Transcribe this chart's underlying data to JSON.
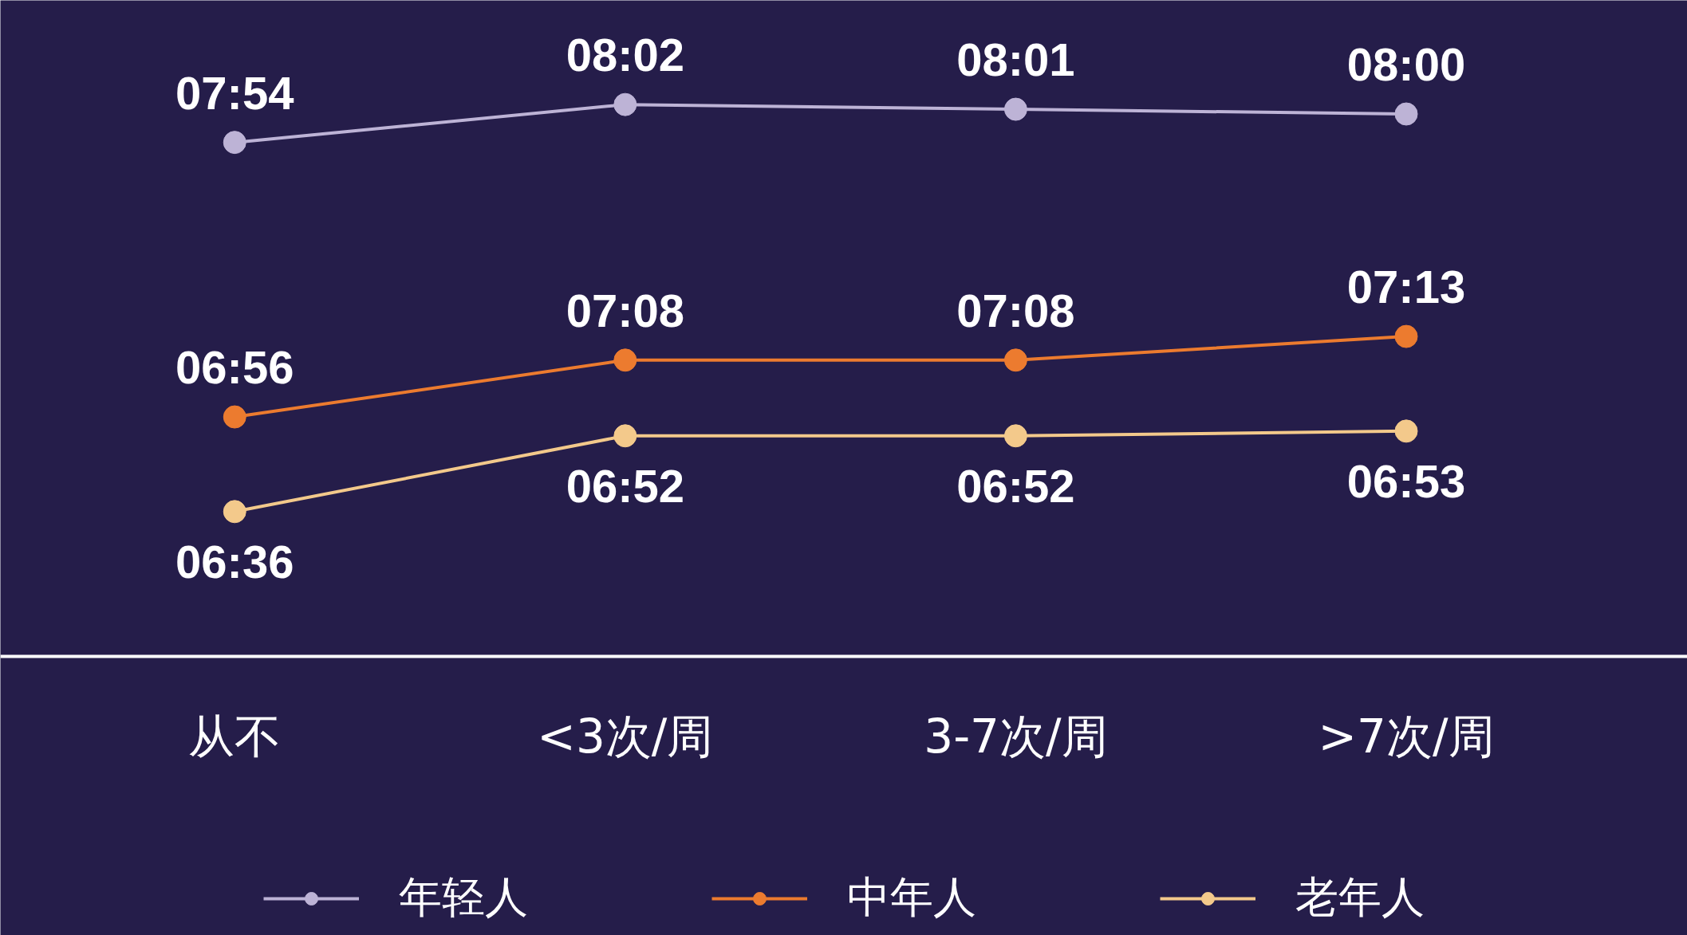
{
  "chart_data": {
    "type": "line",
    "categories": [
      "从不",
      "<3次/周",
      "3-7次/周",
      ">7次/周"
    ],
    "ylim": [
      6.09,
      8.4
    ],
    "marker": "circle",
    "legend": "bottom",
    "grid": false,
    "tick_labels": "x",
    "series": [
      {
        "name": "年轻人",
        "color": "#bdb3d6",
        "values": [
          7.9,
          8.0333,
          8.0167,
          8.0
        ],
        "value_labels": [
          "07:54",
          "08:02",
          "08:01",
          "08:00"
        ]
      },
      {
        "name": "中年人",
        "color": "#ec7b2f",
        "values": [
          6.9333,
          7.1333,
          7.1333,
          7.2167
        ],
        "value_labels": [
          "06:56",
          "07:08",
          "07:08",
          "07:13"
        ]
      },
      {
        "name": "老年人",
        "color": "#f3c98b",
        "values": [
          6.6,
          6.8667,
          6.8667,
          6.8833
        ],
        "value_labels": [
          "06:36",
          "06:52",
          "06:52",
          "06:53"
        ]
      }
    ]
  }
}
